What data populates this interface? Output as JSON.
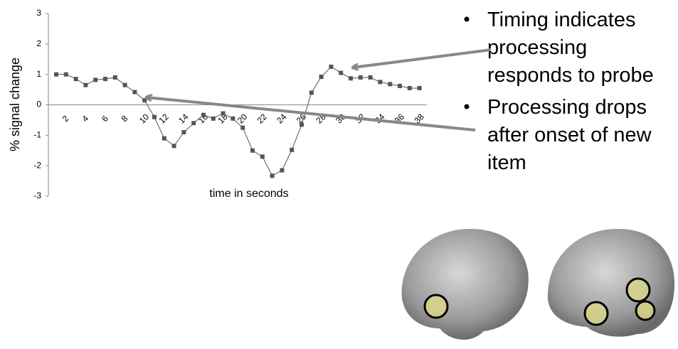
{
  "chart_data": {
    "type": "line",
    "y_label": "% signal change",
    "x_label": "time in seconds",
    "categories": [
      null,
      "2",
      null,
      "4",
      null,
      "6",
      null,
      "8",
      null,
      "10",
      null,
      "12",
      null,
      "14",
      null,
      "16",
      null,
      "18",
      null,
      "20",
      null,
      "22",
      null,
      "24",
      null,
      "26",
      null,
      "28",
      null,
      "30",
      null,
      "32",
      null,
      "34",
      null,
      "36",
      null,
      "38"
    ],
    "series": [
      {
        "color": "#555555",
        "values": [
          1.0,
          1.0,
          0.85,
          0.65,
          0.82,
          0.85,
          0.9,
          0.65,
          0.42,
          0.15,
          -0.4,
          -1.1,
          -1.35,
          -0.9,
          -0.6,
          -0.33,
          -0.45,
          -0.28,
          -0.45,
          -0.75,
          -1.5,
          -1.7,
          -2.33,
          -2.15,
          -1.48,
          -0.65,
          0.4,
          0.92,
          1.25,
          1.05,
          0.87,
          0.9,
          0.9,
          0.75,
          0.68,
          0.62,
          0.55,
          0.55
        ]
      }
    ],
    "ylim": [
      -3,
      3
    ],
    "yticks": [
      -3,
      -2,
      -1,
      0,
      1,
      2,
      3
    ]
  },
  "bullets": [
    [
      "Timing indicates",
      "processing",
      "responds to probe"
    ],
    [
      "Processing drops",
      "after onset of new",
      "item"
    ]
  ]
}
